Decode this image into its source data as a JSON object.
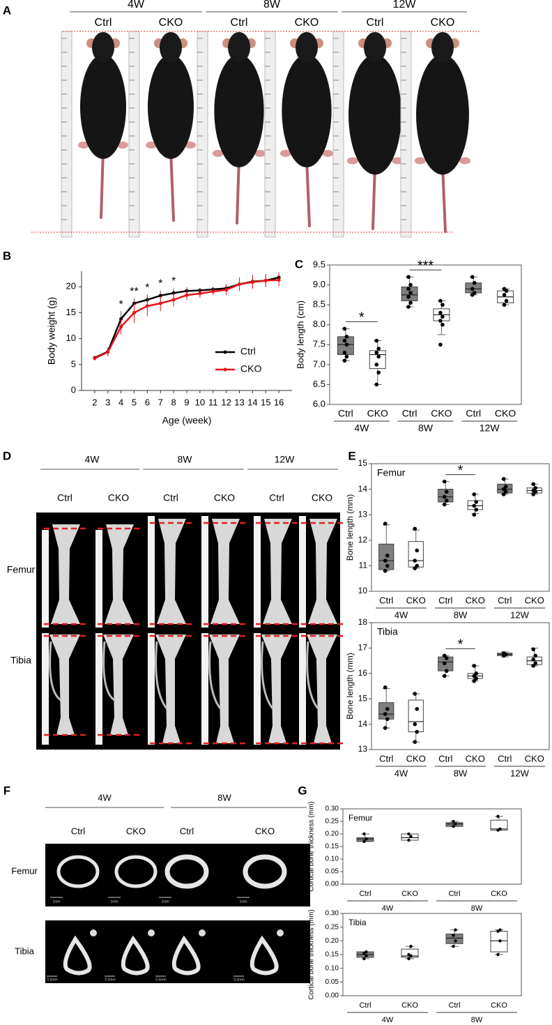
{
  "panel_a": {
    "letter": "A",
    "groups": [
      "4W",
      "8W",
      "12W"
    ],
    "labels": [
      "Ctrl",
      "CKO",
      "Ctrl",
      "CKO",
      "Ctrl",
      "CKO"
    ]
  },
  "panel_d": {
    "letter": "D",
    "groups": [
      "4W",
      "8W",
      "12W"
    ],
    "labels": [
      "Ctrl",
      "CKO",
      "Ctrl",
      "CKO",
      "Ctrl",
      "CKO"
    ],
    "rows": [
      "Femur",
      "Tibia"
    ]
  },
  "panel_f": {
    "letter": "F",
    "groups": [
      "4W",
      "8W"
    ],
    "labels": [
      "Ctrl",
      "CKO",
      "Ctrl",
      "CKO"
    ],
    "rows": [
      "Femur",
      "Tibia"
    ],
    "scale_bars": [
      "1mm",
      "1mm",
      "1mm",
      "1mm",
      "0.5mm",
      "0.5mm",
      "0.5mm",
      "0.5mm"
    ]
  },
  "chart_data": [
    {
      "type": "line",
      "letter": "B",
      "xlabel": "Age (week)",
      "ylabel": "Body weight (g)",
      "x": [
        2,
        3,
        4,
        5,
        6,
        7,
        8,
        9,
        10,
        11,
        12,
        13,
        14,
        15,
        16
      ],
      "xlim": [
        1,
        17
      ],
      "xticks": [
        2,
        3,
        4,
        5,
        6,
        7,
        8,
        9,
        10,
        11,
        12,
        13,
        14,
        15,
        16
      ],
      "ylim": [
        0,
        23
      ],
      "yticks": [
        0,
        5,
        10,
        15,
        20
      ],
      "legend": "lower right",
      "series": [
        {
          "name": "Ctrl",
          "color": "#000000",
          "values": [
            6.3,
            7.5,
            13.8,
            16.8,
            17.5,
            18.3,
            18.8,
            19.2,
            19.3,
            19.5,
            19.7,
            20.5,
            21.0,
            21.2,
            21.8
          ],
          "errors": [
            0.4,
            0.8,
            1.5,
            1.0,
            1.0,
            1.0,
            1.0,
            0.7,
            0.5,
            0.5,
            0.8,
            1.0,
            1.3,
            1.3,
            1.0
          ]
        },
        {
          "name": "CKO",
          "color": "#e8141b",
          "values": [
            6.2,
            7.4,
            12.3,
            15.0,
            16.3,
            16.8,
            17.5,
            18.4,
            18.7,
            19.1,
            19.4,
            20.5,
            20.9,
            21.2,
            21.3
          ],
          "errors": [
            0.4,
            0.8,
            1.5,
            2.0,
            2.0,
            1.5,
            1.3,
            1.0,
            0.8,
            0.7,
            1.0,
            1.3,
            1.3,
            1.2,
            1.2
          ]
        }
      ],
      "annotations": [
        {
          "x": 4,
          "label": "*"
        },
        {
          "x": 5,
          "label": "**"
        },
        {
          "x": 6,
          "label": "*"
        },
        {
          "x": 7,
          "label": "*"
        },
        {
          "x": 8,
          "label": "*"
        }
      ]
    },
    {
      "type": "box",
      "letter": "C",
      "ylabel": "Body length (cm)",
      "ylim": [
        6,
        9.5
      ],
      "yticks": [
        {
          "value": 6,
          "label": "6.0"
        },
        {
          "value": 6.5,
          "label": "6.5"
        },
        {
          "value": 7,
          "label": "7.0"
        },
        {
          "value": 7.5,
          "label": "7.5"
        },
        {
          "value": 8,
          "label": "8.0"
        },
        {
          "value": 8.5,
          "label": "8.5"
        },
        {
          "value": 9,
          "label": "9.0"
        },
        {
          "value": 9.5,
          "label": "9.5"
        }
      ],
      "categories": [
        "Ctrl",
        "CKO",
        "Ctrl",
        "CKO",
        "Ctrl",
        "CKO"
      ],
      "groups": [
        "4W",
        "8W",
        "12W"
      ],
      "significance": [
        "*",
        "***",
        null
      ],
      "boxes": [
        {
          "color": "#7f7f7f",
          "whislo": 7.1,
          "q1": 7.25,
          "med": 7.5,
          "q3": 7.7,
          "whishi": 7.9,
          "points": [
            7.1,
            7.2,
            7.3,
            7.5,
            7.6,
            7.7,
            7.9
          ]
        },
        {
          "color": "#ffffff",
          "whislo": 6.5,
          "q1": 6.9,
          "med": 7.25,
          "q3": 7.35,
          "whishi": 7.6,
          "points": [
            6.5,
            6.8,
            7.0,
            7.2,
            7.3,
            7.4,
            7.6
          ]
        },
        {
          "color": "#7f7f7f",
          "whislo": 8.45,
          "q1": 8.6,
          "med": 8.75,
          "q3": 8.95,
          "whishi": 9.2,
          "points": [
            8.45,
            8.55,
            8.7,
            8.8,
            8.9,
            9.0,
            9.2
          ]
        },
        {
          "color": "#ffffff",
          "whislo": 7.75,
          "q1": 8.1,
          "med": 8.25,
          "q3": 8.4,
          "whishi": 8.6,
          "points": [
            7.5,
            8.0,
            8.1,
            8.2,
            8.3,
            8.5,
            8.6
          ]
        },
        {
          "color": "#7f7f7f",
          "whislo": 8.75,
          "q1": 8.8,
          "med": 8.9,
          "q3": 9.05,
          "whishi": 9.2,
          "points": [
            8.75,
            8.8,
            8.9,
            9.05,
            9.2
          ]
        },
        {
          "color": "#ffffff",
          "whislo": 8.5,
          "q1": 8.55,
          "med": 8.7,
          "q3": 8.85,
          "whishi": 8.9,
          "points": [
            8.5,
            8.6,
            8.75,
            8.85,
            8.9
          ]
        }
      ]
    },
    {
      "type": "box",
      "letter": "E",
      "title": "Femur",
      "ylabel": "Bone length (mm)",
      "ylim": [
        10,
        15
      ],
      "yticks": [
        10,
        11,
        12,
        13,
        14,
        15
      ],
      "categories": [
        "Ctrl",
        "CKO",
        "Ctrl",
        "CKO",
        "Ctrl",
        "CKO"
      ],
      "groups": [
        "4W",
        "8W",
        "12W"
      ],
      "significance": [
        null,
        "*",
        null
      ],
      "boxes": [
        {
          "color": "#7f7f7f",
          "whislo": 10.8,
          "q1": 10.85,
          "med": 11.2,
          "q3": 11.85,
          "whishi": 12.6,
          "points": [
            10.8,
            11.0,
            11.2,
            11.4,
            12.65
          ]
        },
        {
          "color": "#ffffff",
          "whislo": 10.9,
          "q1": 10.95,
          "med": 11.2,
          "q3": 11.95,
          "whishi": 12.4,
          "points": [
            10.9,
            11.0,
            11.2,
            11.6,
            12.45
          ]
        },
        {
          "color": "#7f7f7f",
          "whislo": 13.4,
          "q1": 13.5,
          "med": 13.7,
          "q3": 14.0,
          "whishi": 14.3,
          "points": [
            13.4,
            13.55,
            13.7,
            13.9,
            14.3
          ]
        },
        {
          "color": "#ffffff",
          "whislo": 13.05,
          "q1": 13.2,
          "med": 13.35,
          "q3": 13.55,
          "whishi": 13.8,
          "points": [
            13.0,
            13.2,
            13.35,
            13.5,
            13.8
          ]
        },
        {
          "color": "#7f7f7f",
          "whislo": 13.8,
          "q1": 13.85,
          "med": 14.0,
          "q3": 14.2,
          "whishi": 14.4,
          "points": [
            13.8,
            13.9,
            14.0,
            14.1,
            14.4
          ]
        },
        {
          "color": "#ffffff",
          "whislo": 13.8,
          "q1": 13.85,
          "med": 13.95,
          "q3": 14.05,
          "whishi": 14.2,
          "points": [
            13.8,
            13.9,
            13.95,
            14.05,
            14.2
          ]
        }
      ]
    },
    {
      "type": "box",
      "title": "Tibia",
      "ylabel": "Bone length (mm)",
      "ylim": [
        13,
        18
      ],
      "yticks": [
        13,
        14,
        15,
        16,
        17,
        18
      ],
      "categories": [
        "Ctrl",
        "CKO",
        "Ctrl",
        "CKO",
        "Ctrl",
        "CKO"
      ],
      "groups": [
        "4W",
        "8W",
        "12W"
      ],
      "significance": [
        null,
        "*",
        null
      ],
      "boxes": [
        {
          "color": "#7f7f7f",
          "whislo": 13.85,
          "q1": 14.2,
          "med": 14.4,
          "q3": 14.85,
          "whishi": 15.4,
          "points": [
            13.85,
            14.2,
            14.4,
            14.6,
            15.45
          ]
        },
        {
          "color": "#ffffff",
          "whislo": 13.3,
          "q1": 13.7,
          "med": 14.1,
          "q3": 14.95,
          "whishi": 15.2,
          "points": [
            13.3,
            13.7,
            14.0,
            14.6,
            15.2
          ]
        },
        {
          "color": "#7f7f7f",
          "whislo": 15.9,
          "q1": 16.1,
          "med": 16.45,
          "q3": 16.65,
          "whishi": 16.7,
          "points": [
            15.9,
            16.1,
            16.4,
            16.6,
            16.7
          ]
        },
        {
          "color": "#ffffff",
          "whislo": 15.7,
          "q1": 15.8,
          "med": 15.9,
          "q3": 16.0,
          "whishi": 16.3,
          "points": [
            15.7,
            15.8,
            15.9,
            16.0,
            16.3
          ]
        },
        {
          "color": "#7f7f7f",
          "whislo": 16.65,
          "q1": 16.7,
          "med": 16.75,
          "q3": 16.8,
          "whishi": 16.85,
          "points": [
            16.7,
            16.75,
            16.8
          ]
        },
        {
          "color": "#ffffff",
          "whislo": 16.3,
          "q1": 16.35,
          "med": 16.5,
          "q3": 16.65,
          "whishi": 17.0,
          "points": [
            16.3,
            16.4,
            16.55,
            16.7,
            16.95
          ]
        }
      ]
    },
    {
      "type": "box",
      "letter": "G",
      "title": "Femur",
      "ylabel": "Cortical bone thickness (mm)",
      "ylim": [
        0,
        0.3
      ],
      "yticks": [
        {
          "value": 0,
          "label": "0.00"
        },
        {
          "value": 0.05,
          "label": "0.05"
        },
        {
          "value": 0.1,
          "label": "0.10"
        },
        {
          "value": 0.15,
          "label": "0.15"
        },
        {
          "value": 0.2,
          "label": "0.20"
        },
        {
          "value": 0.25,
          "label": "0.25"
        },
        {
          "value": 0.3,
          "label": "0.30"
        }
      ],
      "categories": [
        "Ctrl",
        "CKO",
        "Ctrl",
        "CKO"
      ],
      "groups": [
        "4W",
        "8W"
      ],
      "significance": [
        null,
        null
      ],
      "boxes": [
        {
          "color": "#7f7f7f",
          "whislo": 0.17,
          "q1": 0.17,
          "med": 0.18,
          "q3": 0.185,
          "whishi": 0.2,
          "points": [
            0.17,
            0.18,
            0.2
          ]
        },
        {
          "color": "#ffffff",
          "whislo": 0.175,
          "q1": 0.175,
          "med": 0.185,
          "q3": 0.2,
          "whishi": 0.2,
          "points": [
            0.175,
            0.19,
            0.2
          ]
        },
        {
          "color": "#7f7f7f",
          "whislo": 0.23,
          "q1": 0.23,
          "med": 0.24,
          "q3": 0.245,
          "whishi": 0.25,
          "points": [
            0.23,
            0.24,
            0.25
          ]
        },
        {
          "color": "#ffffff",
          "whislo": 0.215,
          "q1": 0.215,
          "med": 0.22,
          "q3": 0.255,
          "whishi": 0.27,
          "points": [
            0.215,
            0.22,
            0.27
          ]
        }
      ]
    },
    {
      "type": "box",
      "title": "Tibia",
      "ylabel": "Cortical bone thickness (mm)",
      "ylim": [
        0,
        0.3
      ],
      "yticks": [
        {
          "value": 0,
          "label": "0.00"
        },
        {
          "value": 0.05,
          "label": "0.05"
        },
        {
          "value": 0.1,
          "label": "0.10"
        },
        {
          "value": 0.15,
          "label": "0.15"
        },
        {
          "value": 0.2,
          "label": "0.20"
        },
        {
          "value": 0.25,
          "label": "0.25"
        },
        {
          "value": 0.3,
          "label": "0.30"
        }
      ],
      "categories": [
        "Ctrl",
        "CKO",
        "Ctrl",
        "CKO"
      ],
      "groups": [
        "4W",
        "8W"
      ],
      "significance": [
        null,
        null
      ],
      "boxes": [
        {
          "color": "#7f7f7f",
          "whislo": 0.135,
          "q1": 0.14,
          "med": 0.15,
          "q3": 0.16,
          "whishi": 0.16,
          "points": [
            0.135,
            0.145,
            0.155,
            0.16
          ]
        },
        {
          "color": "#ffffff",
          "whislo": 0.135,
          "q1": 0.14,
          "med": 0.145,
          "q3": 0.17,
          "whishi": 0.18,
          "points": [
            0.135,
            0.145,
            0.15,
            0.18
          ]
        },
        {
          "color": "#7f7f7f",
          "whislo": 0.18,
          "q1": 0.19,
          "med": 0.21,
          "q3": 0.225,
          "whishi": 0.24,
          "points": [
            0.18,
            0.2,
            0.22,
            0.24
          ]
        },
        {
          "color": "#ffffff",
          "whislo": 0.15,
          "q1": 0.16,
          "med": 0.2,
          "q3": 0.235,
          "whishi": 0.24,
          "points": [
            0.15,
            0.2,
            0.235,
            0.24
          ]
        }
      ]
    }
  ]
}
